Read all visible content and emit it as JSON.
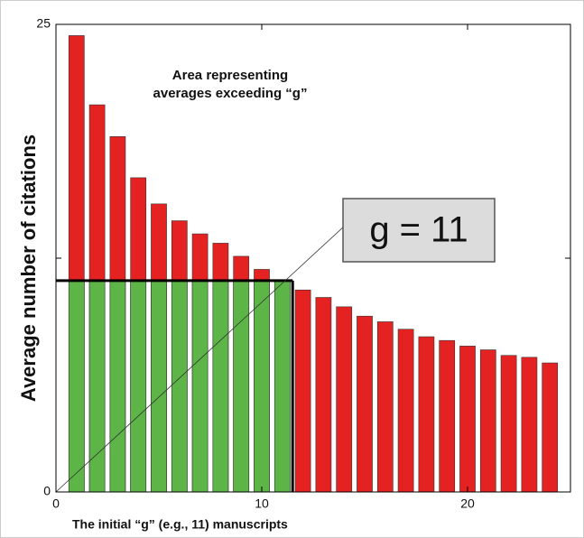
{
  "chart_data": {
    "type": "bar",
    "ylabel": "Average number of citations",
    "xlabel": "The initial “g” (e.g., 11) manuscripts",
    "annotation": [
      "Area representing",
      "averages exceeding “g”"
    ],
    "callout": "g = 11",
    "x": [
      1,
      2,
      3,
      4,
      5,
      6,
      7,
      8,
      9,
      10,
      11,
      12,
      13,
      14,
      15,
      16,
      17,
      18,
      19,
      20,
      21,
      22,
      23,
      24
    ],
    "values": [
      24.4,
      20.7,
      19.0,
      16.8,
      15.4,
      14.5,
      13.8,
      13.3,
      12.6,
      11.9,
      11.3,
      10.8,
      10.4,
      9.9,
      9.4,
      9.1,
      8.7,
      8.3,
      8.1,
      7.8,
      7.6,
      7.3,
      7.2,
      6.9
    ],
    "threshold_y": 11.3,
    "threshold_x": 11.5,
    "color": "#e52222",
    "below_color": "#5db548",
    "xlim": [
      0,
      25
    ],
    "ylim": [
      0,
      25
    ],
    "xticks": [
      0,
      10,
      20
    ],
    "yticks": [
      0,
      {
        "value": 12.5,
        "label": null
      },
      25
    ]
  }
}
